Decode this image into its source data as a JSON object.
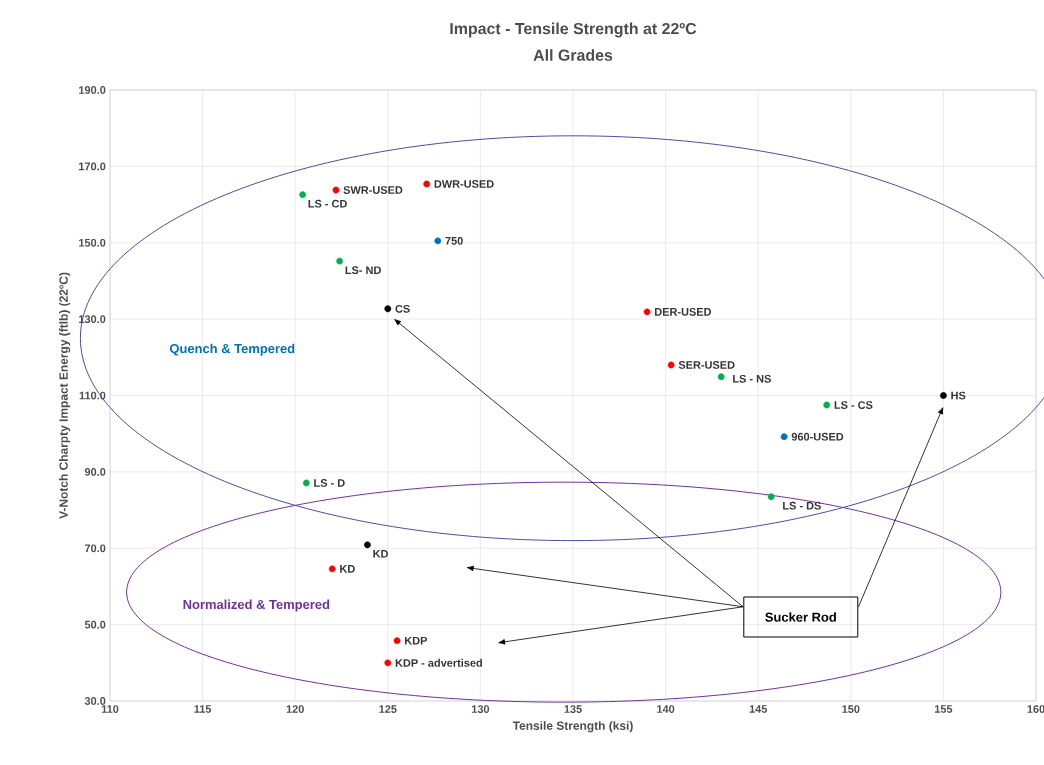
{
  "chart_data": {
    "type": "scatter",
    "title": "Impact - Tensile Strength at 22ºC",
    "subtitle": "All Grades",
    "xlabel": "Tensile Strength (ksi)",
    "ylabel": "V-Notch Charpty Impact Energy  (ftlb) (22ºC)",
    "xlim": [
      110,
      160
    ],
    "xticks": [
      110,
      115,
      120,
      125,
      130,
      135,
      140,
      145,
      150,
      155,
      160
    ],
    "ylim": [
      30,
      190
    ],
    "yticks": [
      {
        "value": 30,
        "label": "30.0"
      },
      {
        "value": 50,
        "label": "50.0"
      },
      {
        "value": 70,
        "label": "70.0"
      },
      {
        "value": 90,
        "label": "90.0"
      },
      {
        "value": 110,
        "label": "110.0"
      },
      {
        "value": 130,
        "label": "130.0"
      },
      {
        "value": 150,
        "label": "150.0"
      },
      {
        "value": 170,
        "label": "170.0"
      },
      {
        "value": 190,
        "label": "190.0"
      }
    ],
    "grid": true,
    "legend": false,
    "marker": "circle",
    "annotations": [
      "Quench & Tempered",
      "Normalized & Tempered",
      "Sucker Rod"
    ],
    "series": [
      {
        "name": "SWR-USED",
        "color": "#ff0000",
        "x": [
          122.2
        ],
        "values": [
          163.8
        ]
      },
      {
        "name": "DWR-USED",
        "color": "#ff0000",
        "x": [
          127.1
        ],
        "values": [
          165.4
        ]
      },
      {
        "name": "LS - CD",
        "color": "#00b050",
        "x": [
          120.4
        ],
        "values": [
          162.6
        ]
      },
      {
        "name": "750",
        "color": "#0070c0",
        "x": [
          127.7
        ],
        "values": [
          150.5
        ]
      },
      {
        "name": "LS- ND",
        "color": "#00b050",
        "x": [
          122.4
        ],
        "values": [
          145.2
        ]
      },
      {
        "name": "CS",
        "color": "#000000",
        "x": [
          125.0
        ],
        "values": [
          132.7
        ]
      },
      {
        "name": "DER-USED",
        "color": "#ff0000",
        "x": [
          139.0
        ],
        "values": [
          131.9
        ]
      },
      {
        "name": "SER-USED",
        "color": "#ff0000",
        "x": [
          140.3
        ],
        "values": [
          118.0
        ]
      },
      {
        "name": "LS - NS",
        "color": "#00b050",
        "x": [
          143.0
        ],
        "values": [
          114.9
        ]
      },
      {
        "name": "LS - CS",
        "color": "#00b050",
        "x": [
          148.7
        ],
        "values": [
          107.5
        ]
      },
      {
        "name": "HS",
        "color": "#000000",
        "x": [
          155.0
        ],
        "values": [
          110.0
        ]
      },
      {
        "name": "960-USED",
        "color": "#0070c0",
        "x": [
          146.4
        ],
        "values": [
          99.2
        ]
      },
      {
        "name": "LS - D",
        "color": "#00b050",
        "x": [
          120.6
        ],
        "values": [
          87.1
        ]
      },
      {
        "name": "LS - DS",
        "color": "#00b050",
        "x": [
          145.7
        ],
        "values": [
          83.5
        ]
      },
      {
        "name": "KD",
        "color": "#000000",
        "x": [
          123.9
        ],
        "values": [
          70.9
        ]
      },
      {
        "name": "KD",
        "color": "#ff0000",
        "x": [
          122.0
        ],
        "values": [
          64.6
        ]
      },
      {
        "name": "KDP",
        "color": "#ff0000",
        "x": [
          125.5
        ],
        "values": [
          45.8
        ]
      },
      {
        "name": "KDP - advertised",
        "color": "#ff0000",
        "x": [
          125.0
        ],
        "values": [
          40.0
        ]
      }
    ]
  }
}
